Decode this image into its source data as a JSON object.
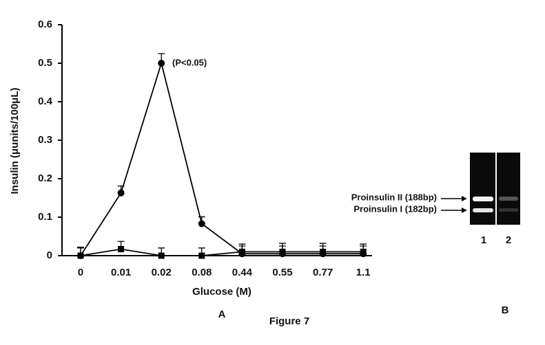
{
  "chart_data": {
    "type": "line",
    "categories": [
      "0",
      "0.01",
      "0.02",
      "0.08",
      "0.44",
      "0.55",
      "0.77",
      "1.1"
    ],
    "series": [
      {
        "color": "#000000",
        "marker": "circle",
        "values": [
          0,
          0.163,
          0.5,
          0.083,
          0.005,
          0.005,
          0.005,
          0.005
        ],
        "errors": [
          0.022,
          0.018,
          0.025,
          0.018,
          0.02,
          0.02,
          0.02,
          0.02
        ]
      },
      {
        "color": "#000000",
        "marker": "square",
        "values": [
          0,
          0.017,
          0,
          0,
          0.01,
          0.01,
          0.01,
          0.01
        ],
        "errors": [
          0.02,
          0.02,
          0.02,
          0.02,
          0.02,
          0.022,
          0.022,
          0.02
        ]
      }
    ],
    "ylim": [
      0,
      0.6
    ],
    "yticks": [
      0,
      0.1,
      0.2,
      0.3,
      0.4,
      0.5,
      0.6
    ],
    "ylabel": "Insulin (μunits/100μL)",
    "xlabel": "Glucose (M)",
    "annotation": "(P<0.05)",
    "panel_a": "A",
    "panel_b": "B",
    "caption": "Figure 7",
    "gel": {
      "band_labels": [
        "Proinsulin II (188bp)",
        "Proinsulin I (182bp)"
      ],
      "lanes": [
        "1",
        "2"
      ]
    }
  }
}
